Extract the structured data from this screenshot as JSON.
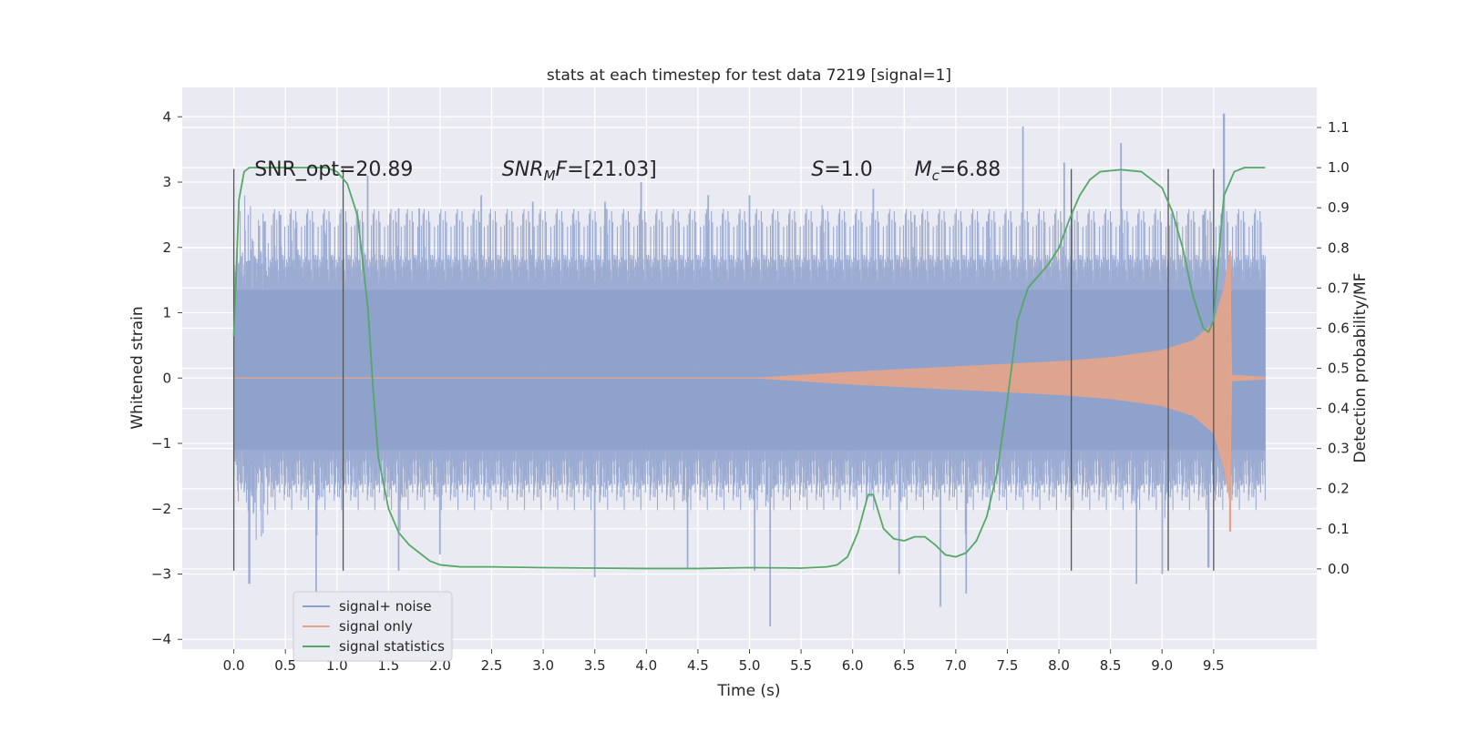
{
  "chart_data": {
    "type": "line",
    "title": "stats at each timestep for test data 7219 [signal=1]",
    "xlabel": "Time (s)",
    "ylabel": "Whitened strain",
    "ylabel_right": "Detection probability/MF",
    "xlim": [
      -0.5,
      10.5
    ],
    "ylim": [
      -4.15,
      4.45
    ],
    "ylim_right": [
      -0.2,
      1.2
    ],
    "x_ticks": [
      0.0,
      0.5,
      1.0,
      1.5,
      2.0,
      2.5,
      3.0,
      3.5,
      4.0,
      4.5,
      5.0,
      5.5,
      6.0,
      6.5,
      7.0,
      7.5,
      8.0,
      8.5,
      9.0,
      9.5
    ],
    "x_tick_labels": [
      "0.0",
      "0.5",
      "1.0",
      "1.5",
      "2.0",
      "2.5",
      "3.0",
      "3.5",
      "4.0",
      "4.5",
      "5.0",
      "5.5",
      "6.0",
      "6.5",
      "7.0",
      "7.5",
      "8.0",
      "8.5",
      "9.0",
      "9.5"
    ],
    "y_ticks": [
      -4,
      -3,
      -2,
      -1,
      0,
      1,
      2,
      3,
      4
    ],
    "y_tick_labels": [
      "−4",
      "−3",
      "−2",
      "−1",
      "0",
      "1",
      "2",
      "3",
      "4"
    ],
    "y_ticks_right": [
      0.0,
      0.1,
      0.2,
      0.3,
      0.4,
      0.5,
      0.6,
      0.7,
      0.8,
      0.9,
      1.0,
      1.1
    ],
    "y_tick_labels_right": [
      "0.0",
      "0.1",
      "0.2",
      "0.3",
      "0.4",
      "0.5",
      "0.6",
      "0.7",
      "0.8",
      "0.9",
      "1.0",
      "1.1"
    ],
    "grid": true,
    "legend_position": "lower-left",
    "annotations": [
      {
        "x": 0.2,
        "y": 3.1,
        "parts": [
          {
            "text": "SNR_opt=20.89",
            "italic": false
          }
        ]
      },
      {
        "x": 2.6,
        "y": 3.1,
        "parts": [
          {
            "text": "SNR",
            "italic": true
          },
          {
            "text": "M",
            "italic": true,
            "sub": true
          },
          {
            "text": "F",
            "italic": true
          },
          {
            "text": "=[21.03]",
            "italic": false
          }
        ]
      },
      {
        "x": 5.6,
        "y": 3.1,
        "parts": [
          {
            "text": "S",
            "italic": true
          },
          {
            "text": "=1.0",
            "italic": false
          }
        ]
      },
      {
        "x": 6.6,
        "y": 3.1,
        "parts": [
          {
            "text": "M",
            "italic": true
          },
          {
            "text": "c",
            "italic": true,
            "sub": true
          },
          {
            "text": "=6.88",
            "italic": false
          }
        ]
      }
    ],
    "vertical_markers": {
      "x": [
        0.0,
        1.06,
        8.12,
        9.06,
        9.5
      ],
      "y_range": [
        -2.95,
        3.2
      ],
      "color": "#555555"
    },
    "series": [
      {
        "name": "signal+ noise",
        "color": "#8da0cb",
        "kind": "noise",
        "x_range": [
          0.0,
          10.0
        ],
        "band": {
          "core": [
            -1.1,
            1.35
          ],
          "peaks": [
            {
              "x": 0.15,
              "y": 1.8
            },
            {
              "x": 0.3,
              "y": 2.4
            },
            {
              "x": 0.45,
              "y": 2.5
            },
            {
              "x": 0.6,
              "y": 2.3
            },
            {
              "x": 0.9,
              "y": 2.2
            },
            {
              "x": 1.3,
              "y": 3.1
            },
            {
              "x": 1.6,
              "y": 2.6
            },
            {
              "x": 1.8,
              "y": 2.6
            },
            {
              "x": 2.4,
              "y": 2.8
            },
            {
              "x": 2.9,
              "y": 2.7
            },
            {
              "x": 3.3,
              "y": 2.3
            },
            {
              "x": 3.6,
              "y": 2.7
            },
            {
              "x": 3.95,
              "y": 3.0
            },
            {
              "x": 4.6,
              "y": 2.8
            },
            {
              "x": 5.0,
              "y": 2.8
            },
            {
              "x": 5.7,
              "y": 2.4
            },
            {
              "x": 6.2,
              "y": 2.9
            },
            {
              "x": 6.6,
              "y": 2.5
            },
            {
              "x": 7.3,
              "y": 2.4
            },
            {
              "x": 7.65,
              "y": 3.85
            },
            {
              "x": 8.05,
              "y": 3.3
            },
            {
              "x": 8.6,
              "y": 3.6
            },
            {
              "x": 9.4,
              "y": 2.5
            },
            {
              "x": 9.6,
              "y": 4.05
            }
          ],
          "troughs": [
            {
              "x": 0.15,
              "y": -3.15
            },
            {
              "x": 0.8,
              "y": -3.4
            },
            {
              "x": 1.6,
              "y": -2.95
            },
            {
              "x": 2.0,
              "y": -2.7
            },
            {
              "x": 3.5,
              "y": -3.05
            },
            {
              "x": 4.4,
              "y": -2.9
            },
            {
              "x": 5.05,
              "y": -2.95
            },
            {
              "x": 5.2,
              "y": -3.8
            },
            {
              "x": 6.45,
              "y": -3.0
            },
            {
              "x": 6.85,
              "y": -3.5
            },
            {
              "x": 7.1,
              "y": -3.3
            },
            {
              "x": 8.75,
              "y": -3.15
            },
            {
              "x": 9.0,
              "y": -3.0
            },
            {
              "x": 9.45,
              "y": -2.9
            }
          ]
        }
      },
      {
        "name": "signal only",
        "color": "#e5a48a",
        "kind": "chirp",
        "x_range": [
          0.0,
          10.0
        ],
        "envelope": [
          [
            0.0,
            0.0
          ],
          [
            5.0,
            0.0
          ],
          [
            5.5,
            0.05
          ],
          [
            6.0,
            0.1
          ],
          [
            7.0,
            0.18
          ],
          [
            7.5,
            0.22
          ],
          [
            8.0,
            0.26
          ],
          [
            8.5,
            0.32
          ],
          [
            9.0,
            0.43
          ],
          [
            9.3,
            0.58
          ],
          [
            9.5,
            0.85
          ],
          [
            9.6,
            1.4
          ],
          [
            9.66,
            1.95
          ],
          [
            9.68,
            0.05
          ],
          [
            10.0,
            0.02
          ]
        ],
        "final_extremes": {
          "x": 9.66,
          "max": 1.95,
          "min": -2.35
        }
      },
      {
        "name": "signal statistics",
        "color": "#55a868",
        "kind": "line",
        "axis": "right",
        "x": [
          0.0,
          0.05,
          0.1,
          0.15,
          0.2,
          0.3,
          0.5,
          0.7,
          0.9,
          1.0,
          1.1,
          1.2,
          1.3,
          1.35,
          1.4,
          1.5,
          1.6,
          1.7,
          1.8,
          1.9,
          2.0,
          2.2,
          2.5,
          3.0,
          3.5,
          4.0,
          4.5,
          5.0,
          5.5,
          5.75,
          5.85,
          5.95,
          6.05,
          6.15,
          6.2,
          6.3,
          6.4,
          6.5,
          6.6,
          6.7,
          6.8,
          6.9,
          7.0,
          7.1,
          7.2,
          7.3,
          7.4,
          7.5,
          7.6,
          7.7,
          7.8,
          7.9,
          8.0,
          8.1,
          8.2,
          8.3,
          8.4,
          8.6,
          8.8,
          9.0,
          9.1,
          9.2,
          9.3,
          9.4,
          9.45,
          9.5,
          9.55,
          9.6,
          9.7,
          9.8,
          9.9,
          10.0
        ],
        "y": [
          0.58,
          0.92,
          0.99,
          1.0,
          1.0,
          1.0,
          1.0,
          1.0,
          1.0,
          0.99,
          0.96,
          0.88,
          0.65,
          0.45,
          0.28,
          0.15,
          0.09,
          0.06,
          0.04,
          0.02,
          0.01,
          0.005,
          0.005,
          0.003,
          0.002,
          0.001,
          0.001,
          0.003,
          0.002,
          0.005,
          0.01,
          0.03,
          0.09,
          0.185,
          0.185,
          0.1,
          0.075,
          0.07,
          0.08,
          0.08,
          0.06,
          0.035,
          0.03,
          0.04,
          0.07,
          0.13,
          0.24,
          0.42,
          0.62,
          0.7,
          0.73,
          0.76,
          0.8,
          0.87,
          0.93,
          0.97,
          0.99,
          0.995,
          0.99,
          0.95,
          0.89,
          0.8,
          0.68,
          0.6,
          0.59,
          0.62,
          0.78,
          0.93,
          0.99,
          1.0,
          1.0,
          1.0
        ]
      }
    ]
  }
}
